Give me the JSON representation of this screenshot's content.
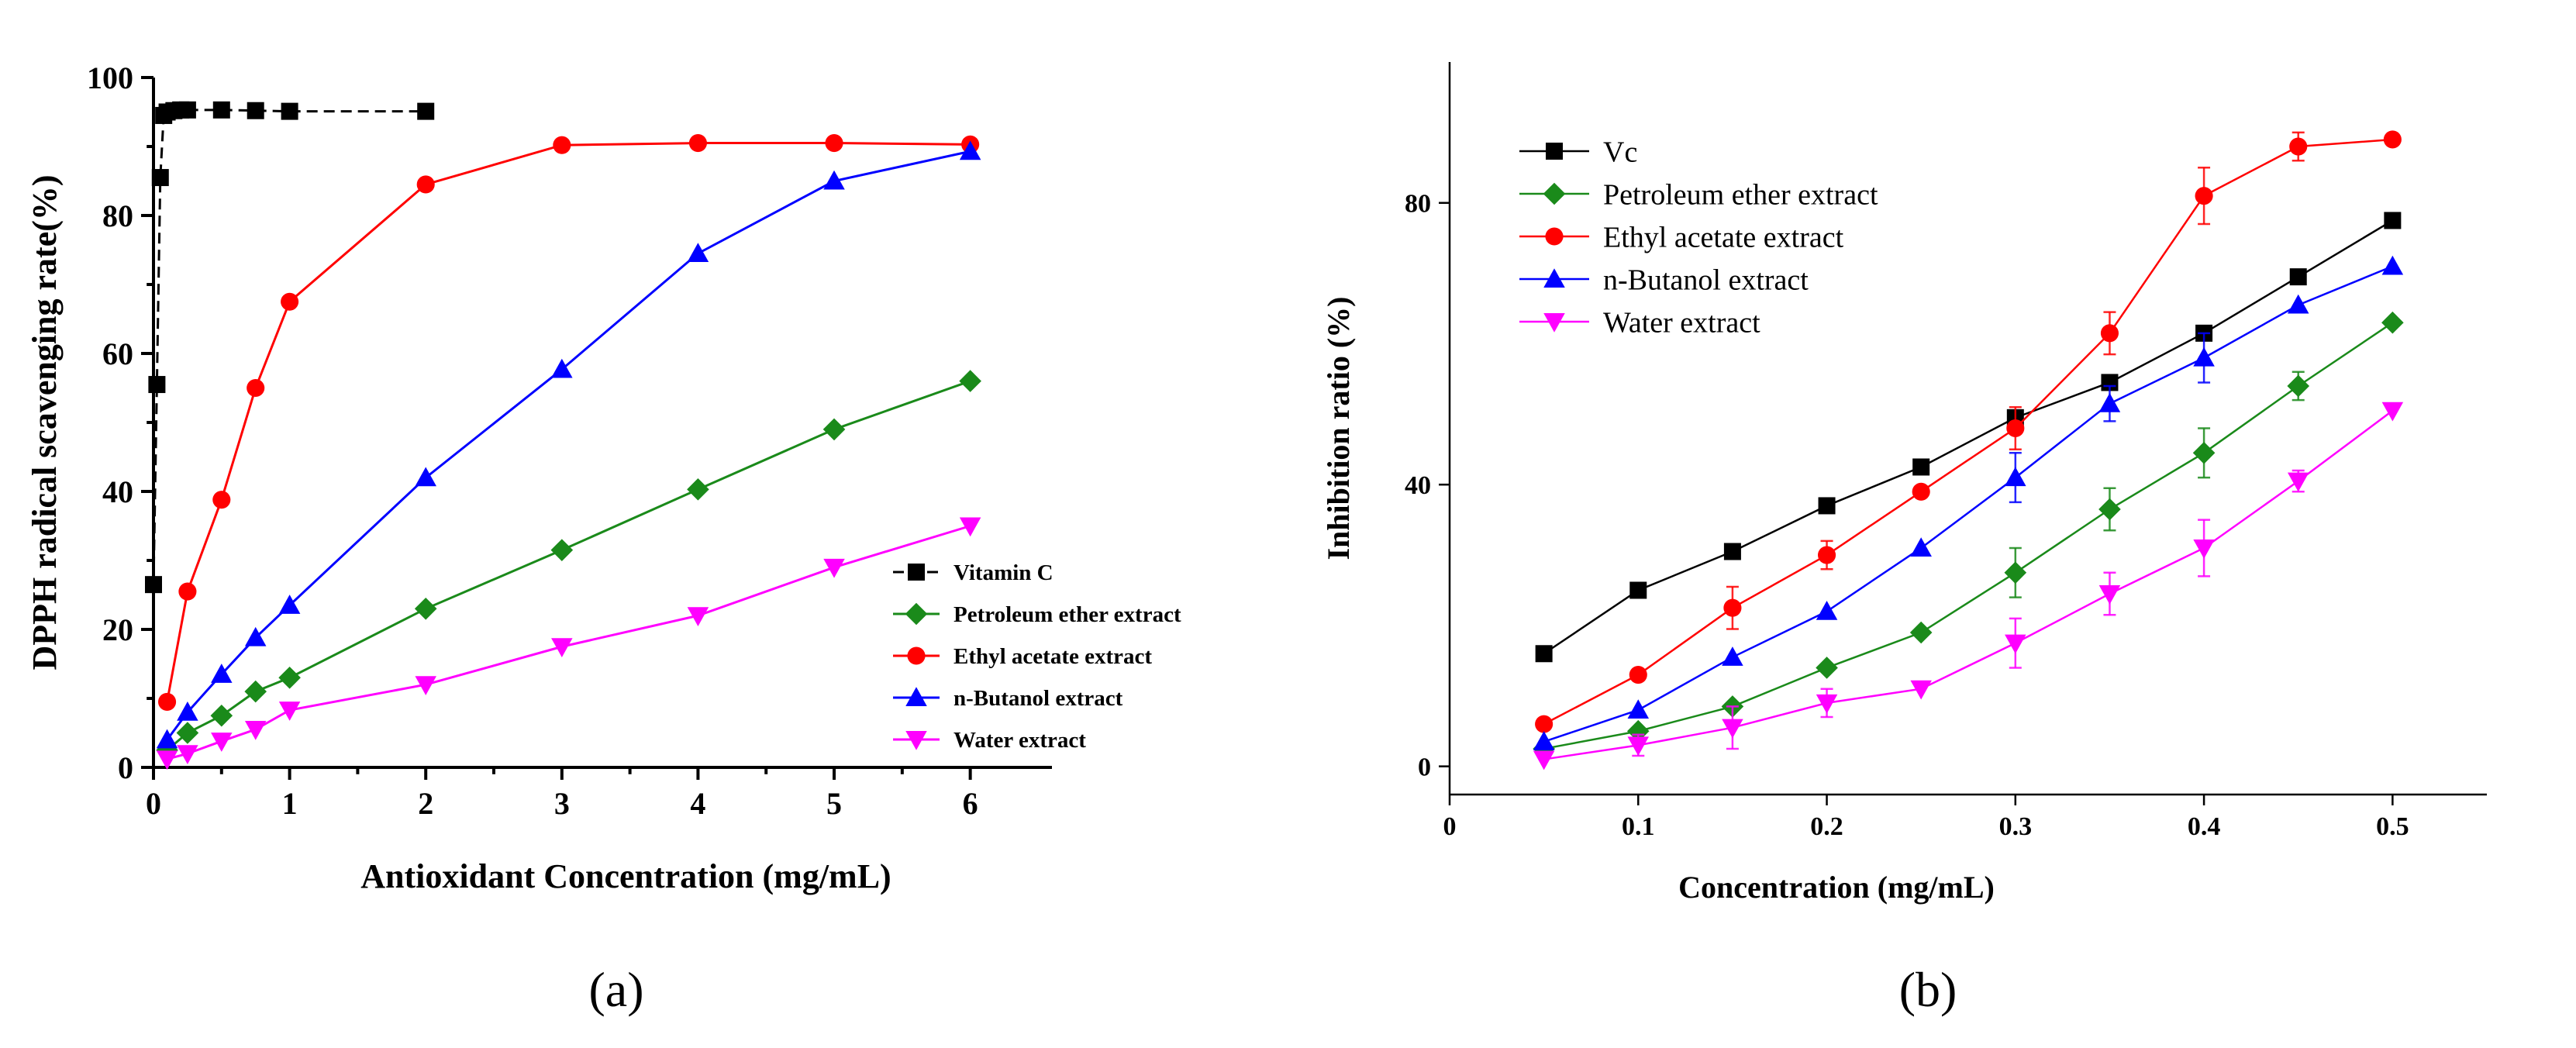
{
  "chart_data": [
    {
      "type": "line",
      "panel_label": "(a)",
      "title": "",
      "xlabel": "Antioxidant Concentration (mg/mL)",
      "ylabel": "DPPH radical scavenging rate(%)",
      "xlim": [
        0,
        6.6
      ],
      "ylim": [
        0,
        100
      ],
      "xticks": [
        0,
        1,
        2,
        3,
        4,
        5,
        6
      ],
      "yticks": [
        0,
        20,
        40,
        60,
        80,
        100
      ],
      "grid": false,
      "legend_position": "bottom-right",
      "series": [
        {
          "name": "Vitamin C",
          "color": "#000000",
          "marker": "square",
          "dash": "dashed",
          "x": [
            0,
            0.025,
            0.05,
            0.075,
            0.1,
            0.15,
            0.2,
            0.25,
            0.5,
            0.75,
            1,
            2
          ],
          "y": [
            26.5,
            55.5,
            85.5,
            94.5,
            95,
            95.2,
            95.3,
            95.3,
            95.3,
            95.2,
            95.1,
            95.1
          ]
        },
        {
          "name": "Petroleum ether extract",
          "color": "#1a8a1a",
          "marker": "diamond",
          "dash": "solid",
          "x": [
            0.1,
            0.25,
            0.5,
            0.75,
            1,
            2,
            3,
            4,
            5,
            6
          ],
          "y": [
            2.5,
            5.0,
            7.5,
            11,
            13,
            23,
            31.5,
            40.3,
            49,
            56
          ]
        },
        {
          "name": "Ethyl acetate extract",
          "color": "#ff0000",
          "marker": "circle",
          "dash": "solid",
          "x": [
            0.1,
            0.25,
            0.5,
            0.75,
            1,
            2,
            3,
            4,
            5,
            6
          ],
          "y": [
            9.5,
            25.5,
            38.8,
            55.0,
            67.5,
            84.5,
            90.2,
            90.5,
            90.5,
            90.3
          ]
        },
        {
          "name": "n-Butanol extract",
          "color": "#0000ff",
          "marker": "triangle-up",
          "dash": "solid",
          "x": [
            0.1,
            0.25,
            0.5,
            0.75,
            1,
            2,
            3,
            4,
            5,
            6
          ],
          "y": [
            4.0,
            8.0,
            13.5,
            18.8,
            23.5,
            42.0,
            57.7,
            74.5,
            85.0,
            89.3
          ]
        },
        {
          "name": "Water extract",
          "color": "#ff00ff",
          "marker": "triangle-down",
          "dash": "solid",
          "x": [
            0.1,
            0.25,
            0.5,
            0.75,
            1,
            2,
            3,
            4,
            5,
            6
          ],
          "y": [
            1.2,
            2.0,
            3.8,
            5.5,
            8.3,
            12,
            17.5,
            22,
            29,
            35
          ]
        }
      ]
    },
    {
      "type": "line",
      "panel_label": "(b)",
      "title": "",
      "xlabel": "Concentration (mg/mL)",
      "ylabel": "Inhibition ratio (%)",
      "xlim": [
        0,
        0.55
      ],
      "ylim": [
        -4,
        100
      ],
      "xticks": [
        0,
        0.1,
        0.2,
        0.3,
        0.4,
        0.5
      ],
      "xtick_labels": [
        "0",
        "0.1",
        "0.2",
        "0.3",
        "0.4",
        "0.5"
      ],
      "yticks": [
        0,
        40,
        80
      ],
      "grid": false,
      "legend_position": "top-left",
      "series": [
        {
          "name": "Vc",
          "color": "#000000",
          "marker": "square",
          "dash": "solid",
          "x": [
            0.05,
            0.1,
            0.15,
            0.2,
            0.25,
            0.3,
            0.35,
            0.4,
            0.45,
            0.5
          ],
          "y": [
            16,
            25,
            30.5,
            37,
            42.5,
            49.5,
            54.5,
            61.5,
            69.5,
            77.5
          ],
          "err": [
            0,
            0,
            0,
            0,
            0,
            0,
            0,
            0,
            0,
            0
          ]
        },
        {
          "name": "Petroleum ether extract",
          "color": "#1a8a1a",
          "marker": "diamond",
          "dash": "solid",
          "x": [
            0.05,
            0.1,
            0.15,
            0.2,
            0.25,
            0.3,
            0.35,
            0.4,
            0.45,
            0.5
          ],
          "y": [
            2.5,
            5,
            8.5,
            14,
            19,
            27.5,
            36.5,
            44.5,
            54,
            63
          ],
          "err": [
            0,
            0,
            0,
            0,
            0,
            3.5,
            3,
            3.5,
            2,
            0
          ]
        },
        {
          "name": "Ethyl acetate extract",
          "color": "#ff0000",
          "marker": "circle",
          "dash": "solid",
          "x": [
            0.05,
            0.1,
            0.15,
            0.2,
            0.25,
            0.3,
            0.35,
            0.4,
            0.45,
            0.5
          ],
          "y": [
            6,
            13,
            22.5,
            30,
            39,
            48,
            61.5,
            81,
            88,
            89
          ],
          "err": [
            0,
            0,
            3,
            2,
            0,
            3,
            3,
            4,
            2,
            0
          ]
        },
        {
          "name": "n-Butanol extract",
          "color": "#0000ff",
          "marker": "triangle-up",
          "dash": "solid",
          "x": [
            0.05,
            0.1,
            0.15,
            0.2,
            0.25,
            0.3,
            0.35,
            0.4,
            0.45,
            0.5
          ],
          "y": [
            3.5,
            8,
            15.5,
            22,
            31,
            41,
            51.5,
            58,
            65.5,
            71
          ],
          "err": [
            0,
            0,
            0,
            0,
            0,
            3.5,
            2.5,
            3.5,
            0,
            0
          ]
        },
        {
          "name": "Water extract",
          "color": "#ff00ff",
          "marker": "triangle-down",
          "dash": "solid",
          "x": [
            0.05,
            0.1,
            0.15,
            0.2,
            0.25,
            0.3,
            0.35,
            0.4,
            0.45,
            0.5
          ],
          "y": [
            1,
            3,
            5.5,
            9,
            11,
            17.5,
            24.5,
            31,
            40.5,
            50.5
          ],
          "err": [
            0,
            1.5,
            3,
            2,
            0,
            3.5,
            3,
            4,
            1.5,
            0
          ]
        }
      ]
    }
  ]
}
